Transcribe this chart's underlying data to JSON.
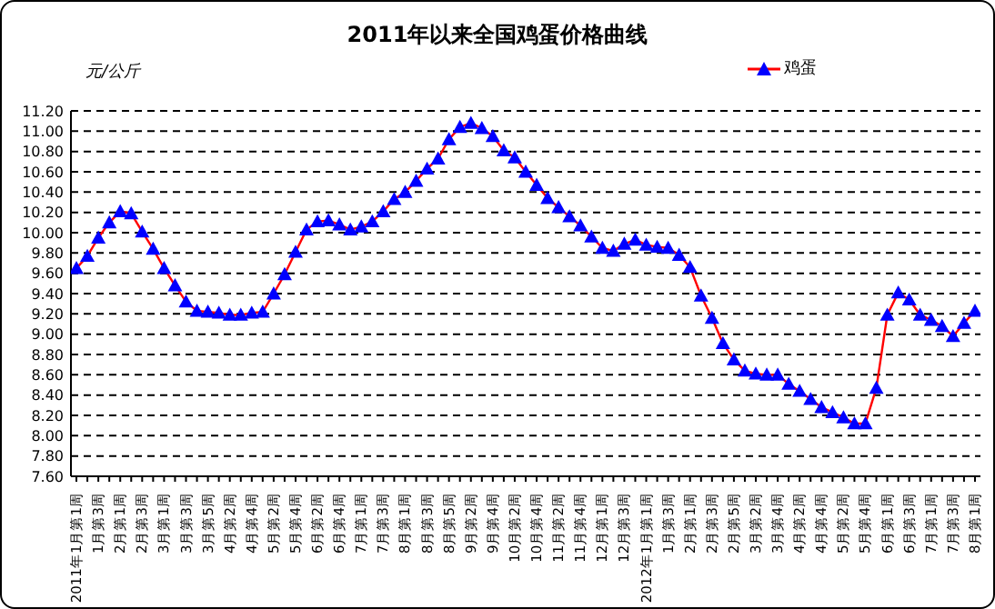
{
  "chart_data": {
    "type": "line",
    "title": "2011年以来全国鸡蛋价格曲线",
    "ylabel": "元/公斤",
    "categories": [
      "2011年1月第1周",
      null,
      "1月第3周",
      null,
      "2月第1周",
      null,
      "2月第3周",
      null,
      "3月第1周",
      null,
      "3月第3周",
      null,
      "3月第5周",
      null,
      "4月第2周",
      null,
      "4月第4周",
      null,
      "5月第2周",
      null,
      "5月第4周",
      null,
      "6月第2周",
      null,
      "6月第4周",
      null,
      "7月第1周",
      null,
      "7月第3周",
      null,
      "8月第1周",
      null,
      "8月第3周",
      null,
      "8月第5周",
      null,
      "9月第2周",
      null,
      "9月第4周",
      null,
      "10月第2周",
      null,
      "10月第4周",
      null,
      "11月第2周",
      null,
      "11月第4周",
      null,
      "12月第1周",
      null,
      "12月第3周",
      null,
      "2012年1月第1周",
      null,
      "1月第3周",
      null,
      "2月第1周",
      null,
      "2月第3周",
      null,
      "2月第5周",
      null,
      "3月第2周",
      null,
      "3月第4周",
      null,
      "4月第2周",
      null,
      "4月第4周",
      null,
      "5月第2周",
      null,
      "5月第4周",
      null,
      "6月第1周",
      null,
      "6月第3周",
      null,
      "7月第1周",
      null,
      "7月第3周",
      null,
      "8月第1周"
    ],
    "series": [
      {
        "name": "鸡蛋",
        "color": "#0000ff",
        "values": [
          9.65,
          9.77,
          9.95,
          10.1,
          10.21,
          10.19,
          10.01,
          9.84,
          9.65,
          9.48,
          9.32,
          9.23,
          9.22,
          9.21,
          9.19,
          9.19,
          9.21,
          9.22,
          9.4,
          9.59,
          9.81,
          10.03,
          10.11,
          10.12,
          10.08,
          10.03,
          10.06,
          10.11,
          10.21,
          10.33,
          10.4,
          10.51,
          10.63,
          10.73,
          10.92,
          11.04,
          11.08,
          11.03,
          10.95,
          10.81,
          10.74,
          10.6,
          10.47,
          10.34,
          10.25,
          10.16,
          10.07,
          9.96,
          9.85,
          9.82,
          9.89,
          9.93,
          9.88,
          9.86,
          9.85,
          9.78,
          9.66,
          9.38,
          9.16,
          8.91,
          8.75,
          8.64,
          8.61,
          8.6,
          8.6,
          8.51,
          8.44,
          8.36,
          8.28,
          8.23,
          8.18,
          8.12,
          8.12,
          8.47,
          9.19,
          9.41,
          9.34,
          9.19,
          9.14,
          9.08,
          8.98,
          9.11,
          9.23
        ]
      }
    ],
    "ylim": [
      7.6,
      11.2
    ],
    "yticks": [
      {
        "value": 7.6,
        "label": "7.60"
      },
      {
        "value": 7.8,
        "label": "7.80"
      },
      {
        "value": 8,
        "label": "8.00"
      },
      {
        "value": 8.2,
        "label": "8.20"
      },
      {
        "value": 8.4,
        "label": "8.40"
      },
      {
        "value": 8.6,
        "label": "8.60"
      },
      {
        "value": 8.8,
        "label": "8.80"
      },
      {
        "value": 9,
        "label": "9.00"
      },
      {
        "value": 9.2,
        "label": "9.20"
      },
      {
        "value": 9.4,
        "label": "9.40"
      },
      {
        "value": 9.6,
        "label": "9.60"
      },
      {
        "value": 9.8,
        "label": "9.80"
      },
      {
        "value": 10,
        "label": "10.00"
      },
      {
        "value": 10.2,
        "label": "10.20"
      },
      {
        "value": 10.4,
        "label": "10.40"
      },
      {
        "value": 10.6,
        "label": "10.60"
      },
      {
        "value": 10.8,
        "label": "10.80"
      },
      {
        "value": 11,
        "label": "11.00"
      },
      {
        "value": 11.2,
        "label": "11.20"
      }
    ],
    "grid": "y",
    "legend": "top right",
    "marker": "triangle",
    "line_style": "solid"
  }
}
